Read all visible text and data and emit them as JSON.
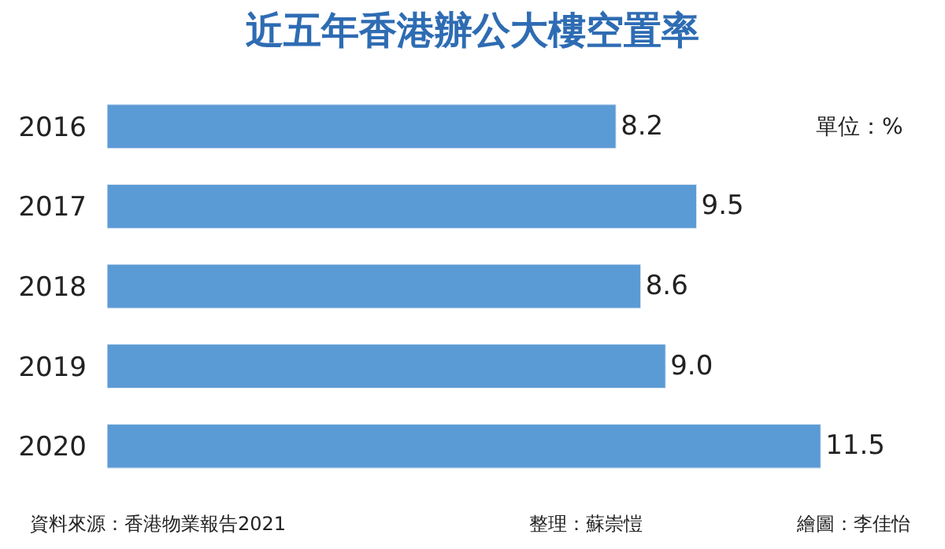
{
  "chart_data": {
    "type": "bar",
    "orientation": "horizontal",
    "title": "近五年香港辦公大樓空置率",
    "categories": [
      "2016",
      "2017",
      "2018",
      "2019",
      "2020"
    ],
    "values": [
      8.2,
      9.5,
      8.6,
      9.0,
      11.5
    ],
    "value_labels": [
      "8.2",
      "9.5",
      "8.6",
      "9.0",
      "11.5"
    ],
    "color": "#5b9bd5",
    "legend": false,
    "tick_labels": "y",
    "annotations": [
      "單位：%",
      "資料來源：香港物業報告2021",
      "整理：蘇崇愷",
      "繪圖：李佳怡"
    ]
  }
}
